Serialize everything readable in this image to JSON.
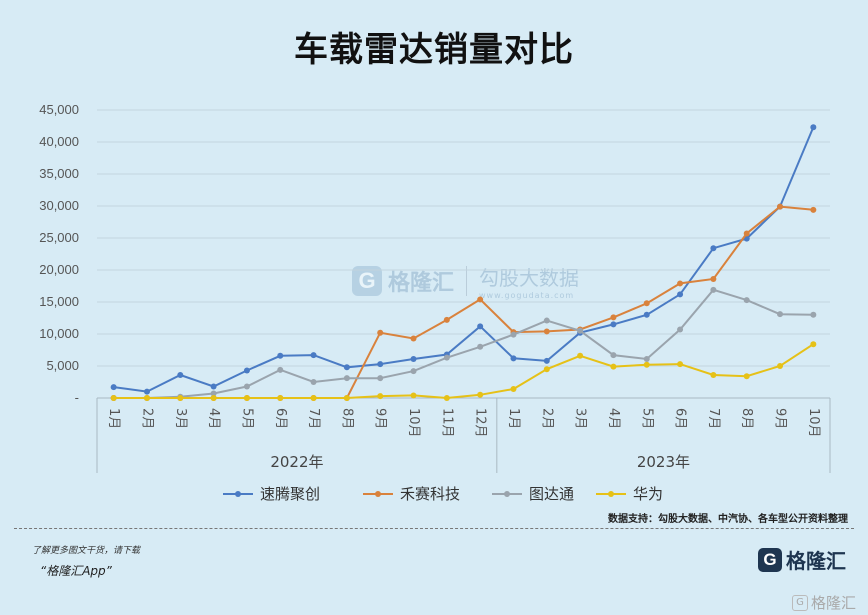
{
  "title": "车载雷达销量对比",
  "source_note": "数据支持：勾股大数据、中汽协、各车型公开资料整理",
  "footer": {
    "line1": "了解更多图文干货，请下载",
    "line2": "“格隆汇App”"
  },
  "brand": {
    "badge": "G",
    "name": "格隆汇",
    "name_small": "格隆汇"
  },
  "watermark": {
    "badge": "G",
    "left": "格隆汇",
    "right_cn": "勾股大数据",
    "right_en": "www.gogudata.com"
  },
  "colors": {
    "background": "#d7ebf5",
    "series": [
      "#4a7bc4",
      "#d9823c",
      "#9aa4ad",
      "#e6c117"
    ]
  },
  "chart_data": {
    "type": "line",
    "title": "车载雷达销量对比",
    "y_ticks": [
      "-",
      "5,000",
      "10,000",
      "15,000",
      "20,000",
      "25,000",
      "30,000",
      "35,000",
      "40,000",
      "45,000"
    ],
    "ylim": [
      0,
      45000
    ],
    "grid": true,
    "legend_position": "bottom",
    "categories": [
      "1月",
      "2月",
      "3月",
      "4月",
      "5月",
      "6月",
      "7月",
      "8月",
      "9月",
      "10月",
      "11月",
      "12月",
      "1月",
      "2月",
      "3月",
      "4月",
      "5月",
      "6月",
      "7月",
      "8月",
      "9月",
      "10月"
    ],
    "year_groups": [
      {
        "label": "2022年",
        "count": 12
      },
      {
        "label": "2023年",
        "count": 10
      }
    ],
    "series": [
      {
        "name": "速腾聚创",
        "values": [
          1700,
          1000,
          3600,
          1800,
          4300,
          6600,
          6700,
          4800,
          5300,
          6100,
          6800,
          11200,
          6200,
          5800,
          10200,
          11500,
          13000,
          16200,
          23400,
          24900,
          29900,
          42300
        ]
      },
      {
        "name": "禾赛科技",
        "values": [
          0,
          0,
          0,
          0,
          0,
          0,
          0,
          0,
          10200,
          9300,
          12200,
          15400,
          10300,
          10400,
          10700,
          12600,
          14800,
          17900,
          18600,
          25700,
          29900,
          29400
        ]
      },
      {
        "name": "图达通",
        "values": [
          0,
          0,
          200,
          700,
          1800,
          4400,
          2500,
          3100,
          3100,
          4200,
          6300,
          8000,
          9900,
          12100,
          10500,
          6700,
          6100,
          10700,
          16900,
          15300,
          13100,
          13000
        ]
      },
      {
        "name": "华为",
        "values": [
          0,
          0,
          0,
          0,
          0,
          0,
          0,
          0,
          300,
          400,
          0,
          500,
          1400,
          4500,
          6600,
          4900,
          5200,
          5300,
          3600,
          3400,
          5000,
          8400
        ]
      }
    ]
  }
}
